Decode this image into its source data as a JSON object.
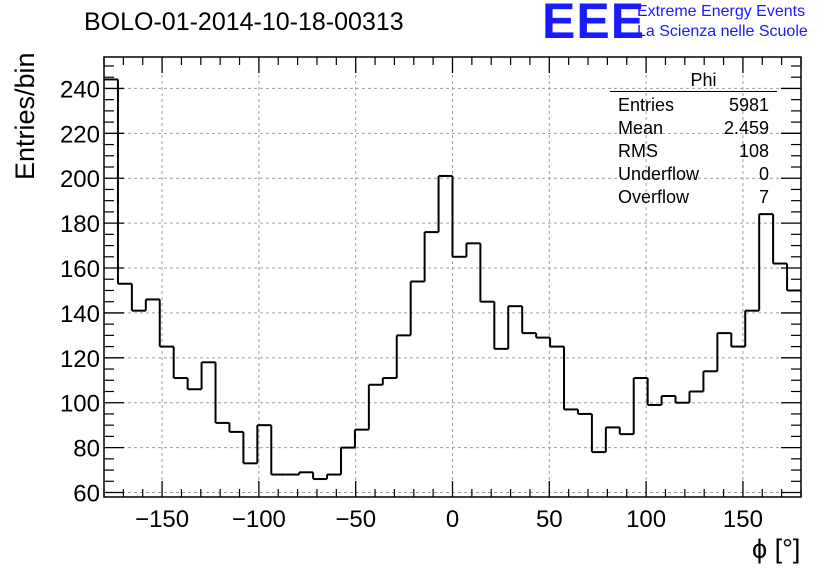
{
  "title": "BOLO-01-2014-10-18-00313",
  "logo": {
    "mark": "EEE",
    "line1": "Extreme Energy Events",
    "line2": "La Scienza nelle Scuole",
    "color": "#1a1aff"
  },
  "stats_box": {
    "name": "Phi",
    "rows": [
      {
        "label": "Entries",
        "value": "5981"
      },
      {
        "label": "Mean",
        "value": "2.459"
      },
      {
        "label": "RMS",
        "value": "108"
      },
      {
        "label": "Underflow",
        "value": "0"
      },
      {
        "label": "Overflow",
        "value": "7"
      }
    ]
  },
  "chart_data": {
    "type": "bar",
    "style": "step-histogram",
    "title": "BOLO-01-2014-10-18-00313",
    "xlabel": "ϕ [°]",
    "ylabel": "Entries/bin",
    "xlim": [
      -180,
      180
    ],
    "ylim": [
      58,
      254
    ],
    "bin_width": 7.2,
    "x_ticks": [
      -150,
      -100,
      -50,
      0,
      50,
      100,
      150
    ],
    "x_tick_labels": [
      "−150",
      "−100",
      "−50",
      "0",
      "50",
      "100",
      "150"
    ],
    "y_ticks": [
      60,
      80,
      100,
      120,
      140,
      160,
      180,
      200,
      220,
      240
    ],
    "y_tick_labels": [
      "60",
      "80",
      "100",
      "120",
      "140",
      "160",
      "180",
      "200",
      "220",
      "240"
    ],
    "grid": true,
    "line_color": "#000000",
    "values": [
      244,
      153,
      141,
      146,
      125,
      111,
      106,
      118,
      91,
      87,
      73,
      90,
      68,
      68,
      69,
      66,
      68,
      80,
      88,
      108,
      111,
      130,
      154,
      176,
      201,
      165,
      171,
      145,
      124,
      143,
      131,
      129,
      125,
      97,
      95,
      78,
      89,
      86,
      111,
      99,
      103,
      100,
      105,
      114,
      131,
      125,
      141,
      184,
      162,
      150
    ]
  }
}
